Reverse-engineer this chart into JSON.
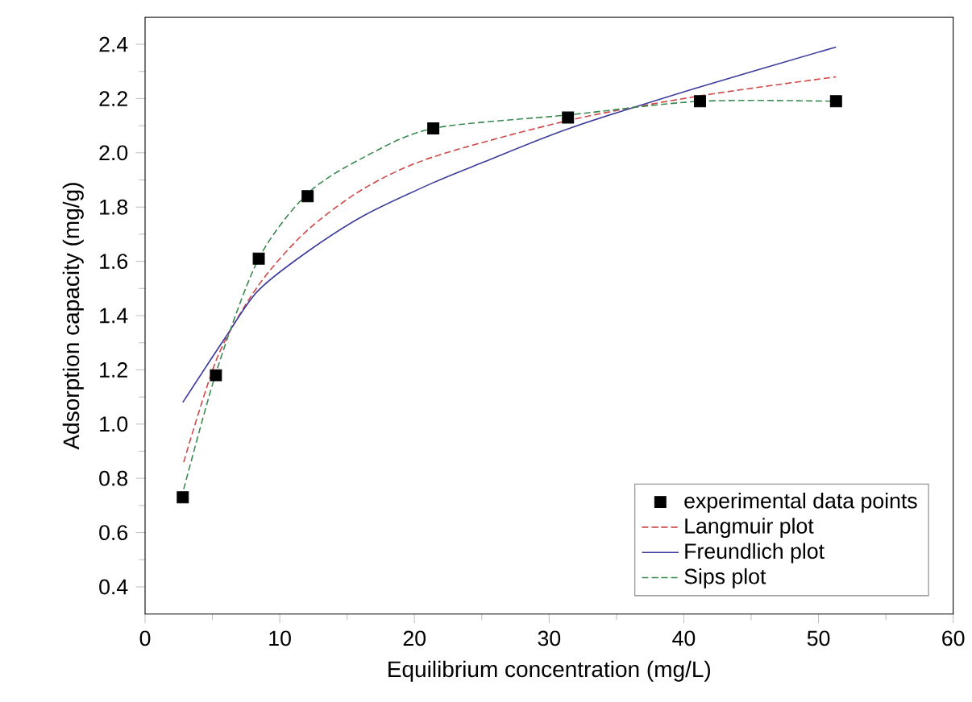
{
  "chart_data": {
    "type": "line",
    "xlabel": "Equilibrium concentration (mg/L)",
    "ylabel": "Adsorption capacity (mg/g)",
    "xlim": [
      0,
      60
    ],
    "xticks": [
      0,
      10,
      20,
      30,
      40,
      50,
      60
    ],
    "ylim": [
      0.3,
      2.5
    ],
    "yticks": [
      0.4,
      0.6,
      0.8,
      {
        "value": 1,
        "label": "1.0"
      },
      1.2,
      1.4,
      1.6,
      1.8,
      {
        "value": 2,
        "label": "2.0"
      },
      2.2,
      2.4
    ],
    "grid": false,
    "legend": "bottom right",
    "series": [
      {
        "name": "experimental data points",
        "type": "scatter",
        "marker": "square",
        "color": "#000000",
        "x": [
          2.8,
          5.26,
          8.44,
          12.07,
          21.4,
          31.4,
          41.2,
          51.3
        ],
        "values": [
          0.73,
          1.18,
          1.61,
          1.84,
          2.09,
          2.13,
          2.19,
          2.19
        ]
      },
      {
        "name": "Langmuir plot",
        "line_style": "dashed",
        "color": "#d04848",
        "x": [
          2.87,
          5.4,
          8.4,
          11.95,
          16.3,
          21.4,
          31.5,
          41.2,
          51.3
        ],
        "values": [
          0.86,
          1.25,
          1.51,
          1.71,
          1.87,
          1.985,
          2.12,
          2.21,
          2.28
        ]
      },
      {
        "name": "Freundlich plot",
        "line_style": "solid",
        "color": "#3c3c9c",
        "x": [
          2.8,
          5.97,
          8.36,
          11.9,
          16.3,
          21.4,
          25.1,
          31.5,
          41,
          51.3
        ],
        "values": [
          1.08,
          1.32,
          1.49,
          1.63,
          1.77,
          1.89,
          1.965,
          2.09,
          2.24,
          2.39
        ]
      },
      {
        "name": "Sips plot",
        "line_style": "dashed",
        "color": "#3a8a50",
        "x": [
          2.87,
          5.4,
          8.44,
          12.07,
          16.3,
          21.4,
          31.5,
          41.2,
          51.3
        ],
        "values": [
          0.76,
          1.21,
          1.61,
          1.85,
          1.985,
          2.09,
          2.14,
          2.19,
          2.19
        ]
      }
    ]
  }
}
